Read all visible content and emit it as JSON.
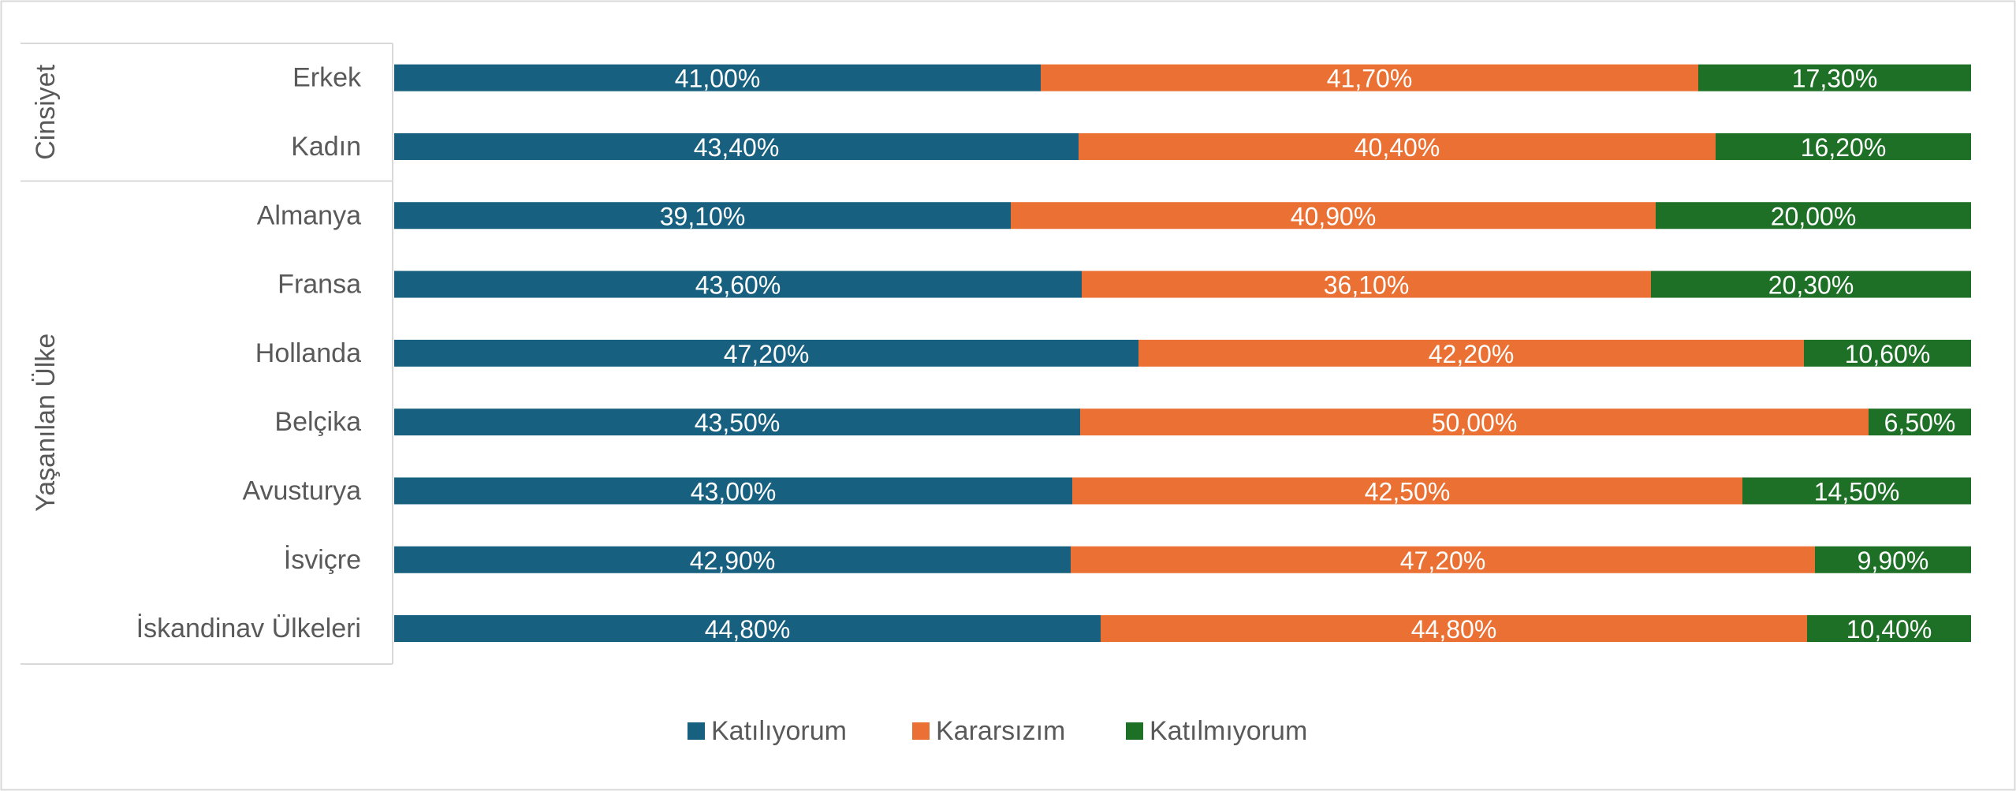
{
  "chart_data": {
    "type": "bar",
    "orientation": "horizontal",
    "stacked": "percent",
    "title": "",
    "xlabel": "",
    "ylabel": "",
    "xlim": [
      0,
      100
    ],
    "grid": false,
    "legend_position": "bottom",
    "groups": [
      {
        "label": "Cinsiyet",
        "categories": [
          "Erkek",
          "Kadın"
        ]
      },
      {
        "label": "Yaşanılan Ülke",
        "categories": [
          "Almanya",
          "Fransa",
          "Hollanda",
          "Belçika",
          "Avusturya",
          "İsviçre",
          "İskandinav Ülkeleri"
        ]
      }
    ],
    "categories": [
      "Erkek",
      "Kadın",
      "Almanya",
      "Fransa",
      "Hollanda",
      "Belçika",
      "Avusturya",
      "İsviçre",
      "İskandinav Ülkeleri"
    ],
    "series": [
      {
        "name": "Katılıyorum",
        "color": "#17607f",
        "values": [
          41.0,
          43.4,
          39.1,
          43.6,
          47.2,
          43.5,
          43.0,
          42.9,
          44.8
        ],
        "labels": [
          "41,00%",
          "43,40%",
          "39,10%",
          "43,60%",
          "47,20%",
          "43,50%",
          "43,00%",
          "42,90%",
          "44,80%"
        ]
      },
      {
        "name": "Kararsızım",
        "color": "#ea7033",
        "values": [
          41.7,
          40.4,
          40.9,
          36.1,
          42.2,
          50.0,
          42.5,
          47.2,
          44.8
        ],
        "labels": [
          "41,70%",
          "40,40%",
          "40,90%",
          "36,10%",
          "42,20%",
          "50,00%",
          "42,50%",
          "47,20%",
          "44,80%"
        ]
      },
      {
        "name": "Katılmıyorum",
        "color": "#1e7026",
        "values": [
          17.3,
          16.2,
          20.0,
          20.3,
          10.6,
          6.5,
          14.5,
          9.9,
          10.4
        ],
        "labels": [
          "17,30%",
          "16,20%",
          "20,00%",
          "20,30%",
          "10,60%",
          "6,50%",
          "14,50%",
          "9,90%",
          "10,40%"
        ]
      }
    ]
  }
}
